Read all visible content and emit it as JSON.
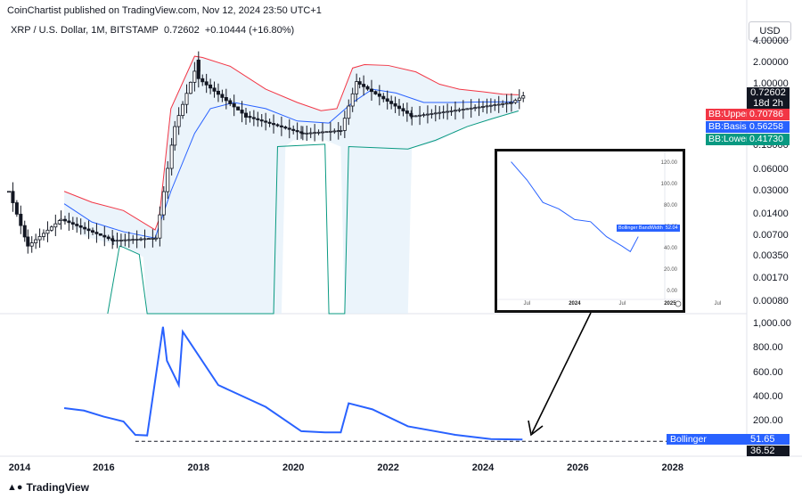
{
  "header": {
    "publisher": "CoinChartist published on TradingView.com, Nov 12, 2024 23:50 UTC+1",
    "symbol": "XRP / U.S. Dollar, 1M, BITSTAMP",
    "last": "0.72602",
    "change": "+0.10444 (+16.80%)",
    "currency": "USD"
  },
  "price_axis": {
    "ticks": [
      "4.00000",
      "2.00000",
      "1.00000",
      "0.25000",
      "0.13000",
      "0.06000",
      "0.03000",
      "0.01400",
      "0.00700",
      "0.00350",
      "0.00170",
      "0.00080"
    ],
    "price_tag": {
      "value": "0.72602",
      "countdown": "18d 2h"
    },
    "bb_tags": [
      {
        "label": "BB:Upper",
        "value": "0.70786",
        "color": "#f23645"
      },
      {
        "label": "BB:Basis",
        "value": "0.56258",
        "color": "#2962ff"
      },
      {
        "label": "BB:Lower",
        "value": "0.41730",
        "color": "#089981"
      }
    ]
  },
  "bw_axis": {
    "ticks": [
      "1,000.00",
      "800.00",
      "600.00",
      "400.00",
      "200.00"
    ],
    "tag_label": "Bollinger BandWidth",
    "tag_value": "51.65",
    "line_value": "36.52"
  },
  "x_axis": {
    "ticks": [
      "2014",
      "2016",
      "2018",
      "2020",
      "2022",
      "2024",
      "2026",
      "2028"
    ]
  },
  "inset": {
    "y_ticks": [
      "120.00",
      "100.00",
      "80.00",
      "60.00",
      "40.00",
      "20.00",
      "0.00"
    ],
    "x_ticks": [
      {
        "label": "Jul",
        "bold": false
      },
      {
        "label": "2024",
        "bold": true
      },
      {
        "label": "Jul",
        "bold": false
      },
      {
        "label": "2025",
        "bold": true
      },
      {
        "label": "Jul",
        "bold": false
      }
    ],
    "tag_label": "Bollinger BandWidth",
    "tag_value": "52.04"
  },
  "brand": "TradingView",
  "chart_data": [
    {
      "type": "candlestick",
      "title": "XRP / U.S. Dollar, 1M, BITSTAMP",
      "y_scale": "log",
      "ylim": [
        0.0008,
        4.0
      ],
      "x_range": [
        "2014-01",
        "2028-12"
      ],
      "series": [
        {
          "name": "BB:Upper",
          "color": "#f23645",
          "x": [
            "2015-03",
            "2015-10",
            "2016-06",
            "2017-02",
            "2017-03",
            "2017-06",
            "2017-12",
            "2018-02",
            "2018-09",
            "2019-06",
            "2020-02",
            "2020-08",
            "2020-12",
            "2021-04",
            "2021-07",
            "2022-01",
            "2022-08",
            "2023-02",
            "2023-07",
            "2024-01",
            "2024-06",
            "2024-10"
          ],
          "values": [
            0.03,
            0.021,
            0.016,
            0.0085,
            0.012,
            0.45,
            2.5,
            2.4,
            1.8,
            0.85,
            0.55,
            0.42,
            0.45,
            1.7,
            1.9,
            1.85,
            1.5,
            1.0,
            0.85,
            0.78,
            0.72,
            0.708
          ]
        },
        {
          "name": "BB:Basis",
          "color": "#2962ff",
          "x": [
            "2015-03",
            "2015-10",
            "2016-06",
            "2017-02",
            "2017-06",
            "2017-12",
            "2018-04",
            "2018-10",
            "2019-06",
            "2020-02",
            "2020-10",
            "2021-04",
            "2021-09",
            "2022-03",
            "2022-10",
            "2023-06",
            "2024-01",
            "2024-06",
            "2024-10"
          ],
          "values": [
            0.02,
            0.011,
            0.008,
            0.0065,
            0.03,
            0.2,
            0.45,
            0.55,
            0.45,
            0.3,
            0.28,
            0.55,
            0.85,
            0.75,
            0.55,
            0.55,
            0.56,
            0.56,
            0.5626
          ]
        },
        {
          "name": "BB:Lower",
          "color": "#089981",
          "x": [
            "2015-03",
            "2015-08",
            "2016-06",
            "2016-11",
            "2017-01",
            "2019-10",
            "2020-01",
            "2020-09",
            "2021-01",
            "2021-09",
            "2022-06",
            "2023-01",
            "2023-09",
            "2024-03",
            "2024-10"
          ],
          "values": [
            0.012,
            0.007,
            0.0048,
            0.0035,
            0.003,
            0.12,
            0.16,
            0.16,
            0.13,
            0.1,
            0.12,
            0.15,
            0.25,
            0.32,
            0.4173
          ]
        }
      ]
    },
    {
      "type": "line",
      "title": "Bollinger BandWidth",
      "ylim": [
        0,
        1100
      ],
      "series": [
        {
          "name": "Bollinger BandWidth",
          "color": "#2962ff",
          "x": [
            "2015-03",
            "2015-08",
            "2016-01",
            "2016-06",
            "2016-09",
            "2016-12",
            "2017-04",
            "2017-05",
            "2017-08",
            "2017-09",
            "2018-06",
            "2019-06",
            "2020-03",
            "2020-09",
            "2021-01",
            "2021-03",
            "2021-09",
            "2022-06",
            "2023-06",
            "2024-03",
            "2024-11"
          ],
          "values": [
            310,
            290,
            240,
            200,
            90,
            85,
            980,
            700,
            500,
            940,
            500,
            320,
            120,
            110,
            110,
            350,
            300,
            160,
            90,
            55,
            51.65
          ]
        },
        {
          "name": "36.52",
          "style": "dashed",
          "color": "#131722",
          "x": [
            "2016-09",
            "2028-12"
          ],
          "values": [
            36.52,
            36.52
          ]
        }
      ]
    },
    {
      "type": "line",
      "title": "Bollinger BandWidth (inset)",
      "ylim": [
        0,
        125
      ],
      "series": [
        {
          "name": "Bollinger BandWidth",
          "color": "#2962ff",
          "x": [
            "2023-05",
            "2023-07",
            "2023-09",
            "2023-11",
            "2024-01",
            "2024-03",
            "2024-05",
            "2024-07",
            "2024-08",
            "2024-09"
          ],
          "values": [
            122,
            105,
            84,
            78,
            68,
            66,
            52,
            43,
            38,
            52.04
          ]
        }
      ]
    }
  ]
}
